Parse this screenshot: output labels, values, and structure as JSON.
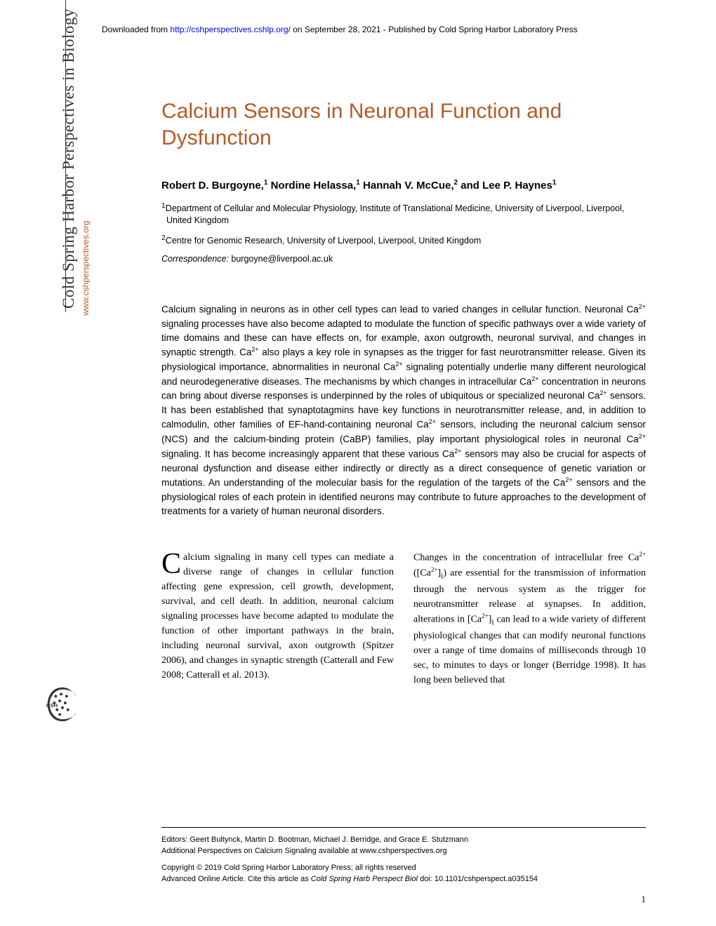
{
  "header": {
    "prefix": "Downloaded from ",
    "url": "http://cshperspectives.cshlp.org/",
    "suffix": " on September 28, 2021 - Published by Cold Spring Harbor Laboratory Press"
  },
  "title": "Calcium Sensors in Neuronal Function and Dysfunction",
  "authors_html": "Robert D. Burgoyne,<sup>1</sup> Nordine Helassa,<sup>1</sup> Hannah V. McCue,<sup>2</sup> and Lee P. Haynes<sup>1</sup>",
  "affiliations": [
    "<sup>1</sup>Department of Cellular and Molecular Physiology, Institute of Translational Medicine, University of Liverpool, Liverpool, United Kingdom",
    "<sup>2</sup>Centre for Genomic Research, University of Liverpool, Liverpool, United Kingdom"
  ],
  "correspondence": {
    "label": "Correspondence:",
    "email": "burgoyne@liverpool.ac.uk"
  },
  "abstract": "Calcium signaling in neurons as in other cell types can lead to varied changes in cellular function. Neuronal Ca<sup>2+</sup> signaling processes have also become adapted to modulate the function of specific pathways over a wide variety of time domains and these can have effects on, for example, axon outgrowth, neuronal survival, and changes in synaptic strength. Ca<sup>2+</sup> also plays a key role in synapses as the trigger for fast neurotransmitter release. Given its physiological importance, abnormalities in neuronal Ca<sup>2+</sup> signaling potentially underlie many different neurological and neurodegenerative diseases. The mechanisms by which changes in intracellular Ca<sup>2+</sup> concentration in neurons can bring about diverse responses is underpinned by the roles of ubiquitous or specialized neuronal Ca<sup>2+</sup> sensors. It has been established that synaptotagmins have key functions in neurotransmitter release, and, in addition to calmodulin, other families of EF-hand-containing neuronal Ca<sup>2+</sup> sensors, including the neuronal calcium sensor (NCS) and the calcium-binding protein (CaBP) families, play important physiological roles in neuronal Ca<sup>2+</sup> signaling. It has become increasingly apparent that these various Ca<sup>2+</sup> sensors may also be crucial for aspects of neuronal dysfunction and disease either indirectly or directly as a direct consequence of genetic variation or mutations. An understanding of the molecular basis for the regulation of the targets of the Ca<sup>2+</sup> sensors and the physiological roles of each protein in identified neurons may contribute to future approaches to the development of treatments for a variety of human neuronal disorders.",
  "body": {
    "col1": "<span class=\"dropcap\">C</span>alcium signaling in many cell types can mediate a diverse range of changes in cellular function affecting gene expression, cell growth, development, survival, and cell death. In addition, neuronal calcium signaling processes have become adapted to modulate the function of other important pathways in the brain, including neuronal survival, axon outgrowth (Spitzer 2006), and changes in synaptic strength (Catterall and Few 2008; Catterall et al. 2013).",
    "col2": "Changes in the concentration of intracellular free Ca<sup>2+</sup> ([Ca<sup>2+</sup>]<sub>i</sub>) are essential for the transmission of information through the nervous system as the trigger for neurotransmitter release at synapses. In addition, alterations in [Ca<sup>2+</sup>]<sub>i</sub> can lead to a wide variety of different physiological changes that can modify neuronal functions over a range of time domains of milliseconds through 10 sec, to minutes to days or longer (Berridge 1998). It has long been believed that"
  },
  "footer": {
    "editors": "Editors: Geert Bultynck, Martin D. Bootman, Michael J. Berridge, and Grace E. Stutzmann",
    "additional": "Additional Perspectives on Calcium Signaling available at www.cshperspectives.org",
    "copyright": "Copyright © 2019 Cold Spring Harbor Laboratory Press; all rights reserved",
    "cite_prefix": "Advanced Online Article. Cite this article as ",
    "cite_italic": "Cold Spring Harb Perspect Biol",
    "cite_suffix": " doi: 10.1101/cshperspect.a035154"
  },
  "sidebar": {
    "journal": "Cold Spring Harbor Perspectives in Biology",
    "url": "www.cshperspectives.org",
    "logo_label": "CSH PERSPECTIVES"
  },
  "page_number": "1",
  "colors": {
    "accent": "#b35a2a",
    "text": "#000000",
    "link": "#0000ee",
    "background": "#ffffff"
  }
}
